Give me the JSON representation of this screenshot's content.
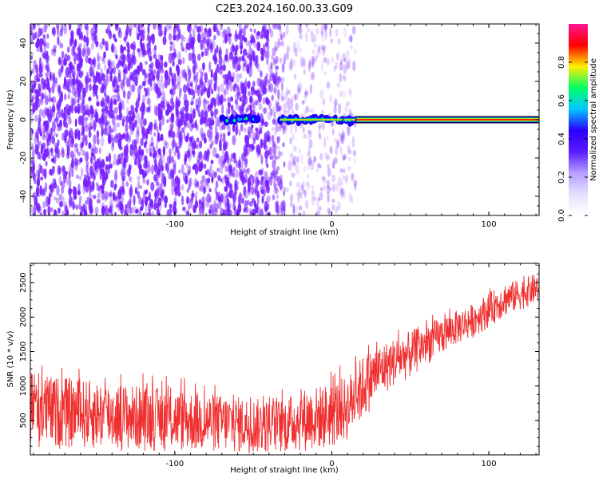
{
  "title": "C2E3.2024.160.00.33.G09",
  "colors": {
    "snr_line": "#f03030",
    "spectrum_dots": "#7a22ff",
    "colorbar": [
      "#ffffff",
      "#e6e0ff",
      "#b59dff",
      "#5a1bff",
      "#2a00ff",
      "#00c8ff",
      "#00ff66",
      "#ffee00",
      "#ff0000",
      "#ff1493"
    ]
  },
  "chart_data": [
    {
      "type": "heatmap",
      "xlabel": "Height of straight line (km)",
      "ylabel": "Frequency (Hz)",
      "xlim": [
        -192,
        132
      ],
      "ylim": [
        -50,
        50
      ],
      "xticks": [
        {
          "value": -100,
          "label": "-100"
        },
        {
          "value": 0,
          "label": "0"
        },
        {
          "value": 100,
          "label": "100"
        }
      ],
      "yticks": [
        {
          "value": -40,
          "label": "-40"
        },
        {
          "value": -20,
          "label": "-20"
        },
        {
          "value": 0,
          "label": "0"
        },
        {
          "value": 20,
          "label": "20"
        },
        {
          "value": 40,
          "label": "40"
        }
      ],
      "noise_region": {
        "x_range": [
          -192,
          -30
        ],
        "y_range": [
          -50,
          50
        ]
      },
      "peak_band": {
        "x_start": 15,
        "x_end": 132,
        "frequency": 0
      },
      "peak_segments": [
        {
          "x_start": -70,
          "x_end": -47,
          "amplitude": 0.3
        },
        {
          "x_start": -33,
          "x_end": 8,
          "amplitude": 0.55
        },
        {
          "x_start": 8,
          "x_end": 15,
          "amplitude": 0.7
        }
      ],
      "colorbar": {
        "label": "Normalized spectral amplitude",
        "range": [
          0.0,
          1.0
        ],
        "ticks": [
          {
            "value": 0.0,
            "label": "0.0"
          },
          {
            "value": 0.2,
            "label": "0.2"
          },
          {
            "value": 0.4,
            "label": "0.4"
          },
          {
            "value": 0.6,
            "label": "0.6"
          },
          {
            "value": 0.8,
            "label": "0.8"
          }
        ]
      }
    },
    {
      "type": "line",
      "xlabel": "Height of straight line (km)",
      "ylabel": "SNR (10 * v/v)",
      "xlim": [
        -192,
        132
      ],
      "ylim": [
        0,
        2780
      ],
      "xticks": [
        {
          "value": -100,
          "label": "-100"
        },
        {
          "value": 0,
          "label": "0"
        },
        {
          "value": 100,
          "label": "100"
        }
      ],
      "yticks": [
        {
          "value": 500,
          "label": "500"
        },
        {
          "value": 1000,
          "label": "1000"
        },
        {
          "value": 1500,
          "label": "1500"
        },
        {
          "value": 2000,
          "label": "2000"
        },
        {
          "value": 2500,
          "label": "2500"
        }
      ],
      "series": [
        {
          "x": [
            -192,
            -180,
            -160,
            -140,
            -120,
            -100,
            -80,
            -60,
            -40,
            -30,
            -20,
            -10,
            0,
            10,
            20,
            30,
            40,
            50,
            60,
            70,
            80,
            90,
            100,
            110,
            120,
            132
          ],
          "upper": [
            1300,
            1150,
            1100,
            1050,
            1000,
            950,
            900,
            850,
            800,
            820,
            950,
            1000,
            1050,
            1150,
            1450,
            1600,
            1700,
            1800,
            1900,
            2000,
            2100,
            2200,
            2350,
            2500,
            2550,
            2650
          ],
          "lower": [
            100,
            80,
            80,
            60,
            50,
            40,
            30,
            20,
            10,
            20,
            40,
            60,
            80,
            200,
            500,
            800,
            1000,
            1100,
            1300,
            1450,
            1600,
            1700,
            1850,
            2000,
            2100,
            2200
          ],
          "color": "#f03030"
        }
      ]
    }
  ]
}
